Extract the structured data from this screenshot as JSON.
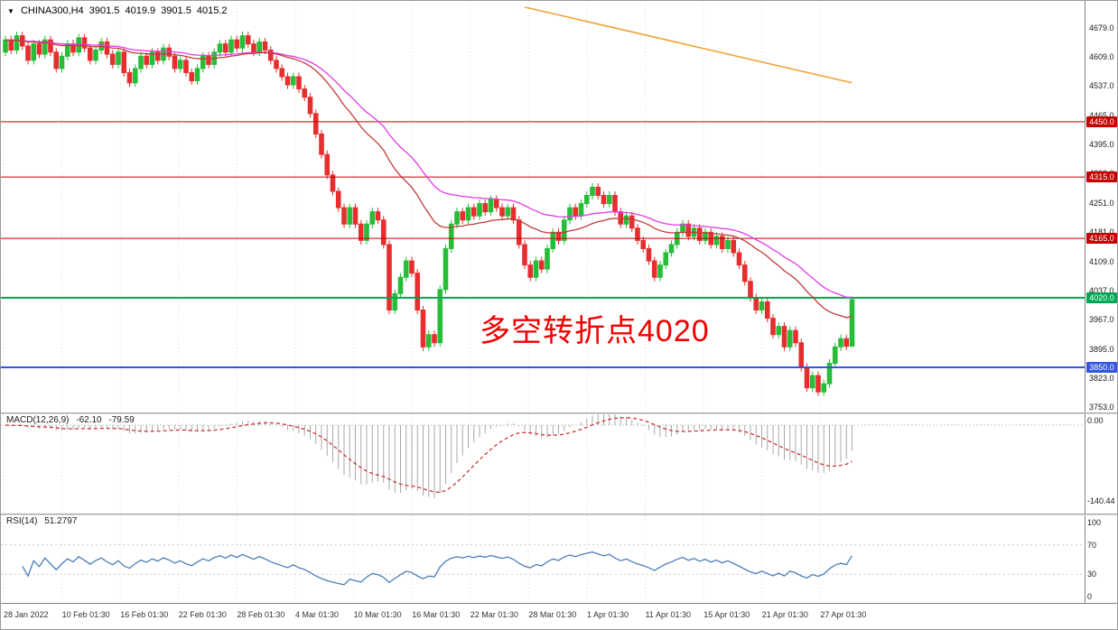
{
  "symbol_info": {
    "arrow": "▼",
    "symbol": "CHINA300,H4",
    "open": "3901.5",
    "high": "4019.9",
    "low": "3901.5",
    "close": "4015.2"
  },
  "annotation": {
    "text": "多空转折点4020",
    "color": "#f20000"
  },
  "chart_data": {
    "type": "candlestick",
    "symbol": "CHINA300",
    "timeframe": "H4",
    "first_open": 4620,
    "wick_points": 10,
    "closes": [
      4650,
      4625,
      4660,
      4635,
      4600,
      4640,
      4615,
      4650,
      4620,
      4580,
      4610,
      4640,
      4620,
      4655,
      4630,
      4600,
      4625,
      4645,
      4615,
      4590,
      4620,
      4570,
      4545,
      4580,
      4610,
      4590,
      4620,
      4600,
      4630,
      4610,
      4580,
      4600,
      4570,
      4550,
      4580,
      4610,
      4590,
      4620,
      4640,
      4620,
      4650,
      4630,
      4660,
      4640,
      4620,
      4645,
      4625,
      4600,
      4580,
      4560,
      4540,
      4560,
      4530,
      4510,
      4470,
      4420,
      4370,
      4320,
      4280,
      4240,
      4200,
      4240,
      4200,
      4160,
      4200,
      4230,
      4210,
      4150,
      3990,
      4030,
      4070,
      4110,
      4080,
      3990,
      3900,
      3930,
      3910,
      4040,
      4140,
      4200,
      4230,
      4210,
      4240,
      4220,
      4250,
      4230,
      4260,
      4240,
      4220,
      4240,
      4210,
      4150,
      4100,
      4070,
      4110,
      4090,
      4140,
      4180,
      4160,
      4210,
      4240,
      4220,
      4250,
      4270,
      4290,
      4270,
      4250,
      4270,
      4230,
      4200,
      4220,
      4190,
      4160,
      4140,
      4110,
      4070,
      4100,
      4130,
      4150,
      4180,
      4200,
      4170,
      4190,
      4160,
      4180,
      4150,
      4170,
      4140,
      4160,
      4130,
      4100,
      4060,
      4020,
      3990,
      4010,
      3970,
      3930,
      3950,
      3900,
      3940,
      3910,
      3850,
      3800,
      3830,
      3790,
      3810,
      3860,
      3900,
      3920,
      3901.5,
      4015.2
    ],
    "last_candle": {
      "open": 3901.5,
      "high": 4019.9,
      "low": 3901.5,
      "close": 4015.2
    },
    "price_range": {
      "max": 4679,
      "min": 3753
    },
    "price_axis_ticks": [
      4679.0,
      4609.0,
      4537.0,
      4465.0,
      4395.0,
      4323.0,
      4251.0,
      4181.0,
      4109.0,
      4037.0,
      3967.0,
      3895.0,
      3823.0,
      3753.0
    ],
    "time_labels": [
      "28 Jan 2022",
      "10 Feb 01:30",
      "16 Feb 01:30",
      "22 Feb 01:30",
      "28 Feb 01:30",
      "4 Mar 01:30",
      "10 Mar 01:30",
      "16 Mar 01:30",
      "22 Mar 01:30",
      "28 Mar 01:30",
      "1 Apr 01:30",
      "11 Apr 01:30",
      "15 Apr 01:30",
      "21 Apr 01:30",
      "27 Apr 01:30"
    ],
    "hlines": [
      {
        "price": 4450.0,
        "color": "#c40000",
        "width": 1
      },
      {
        "price": 4315.0,
        "color": "#c40000",
        "width": 1
      },
      {
        "price": 4165.0,
        "color": "#c40000",
        "width": 1
      },
      {
        "price": 4020.0,
        "color": "#00a651",
        "width": 2
      },
      {
        "price": 3850.0,
        "color": "#3355e0",
        "width": 2
      }
    ],
    "trendline": {
      "start_index": 92,
      "start_price": 4730,
      "end_index": 150,
      "end_price": 4545,
      "color": "#f2a33c"
    },
    "ma_fast": {
      "period": 30,
      "color": "#c03a3a"
    },
    "ma_slow": {
      "period": 45,
      "color": "#e53ae5"
    },
    "colors": {
      "up": "#27bd38",
      "down": "#e62e2e",
      "grid": "#dedede",
      "macd_hist": "#a8a8a8",
      "macd_signal": "#cf3636",
      "rsi_line": "#4a7ebb"
    },
    "macd": {
      "label": "MACD(12,26,9)",
      "value_main": "-62.10",
      "value_signal": "-79.59",
      "fast": 12,
      "slow": 26,
      "signal": 9,
      "axis_top": "0.00",
      "axis_bottom": "-140.44"
    },
    "rsi": {
      "label": "RSI(14)",
      "value": "51.2797",
      "period": 14,
      "axis": [
        100,
        70,
        30,
        0
      ],
      "levels": [
        70,
        30
      ]
    }
  }
}
